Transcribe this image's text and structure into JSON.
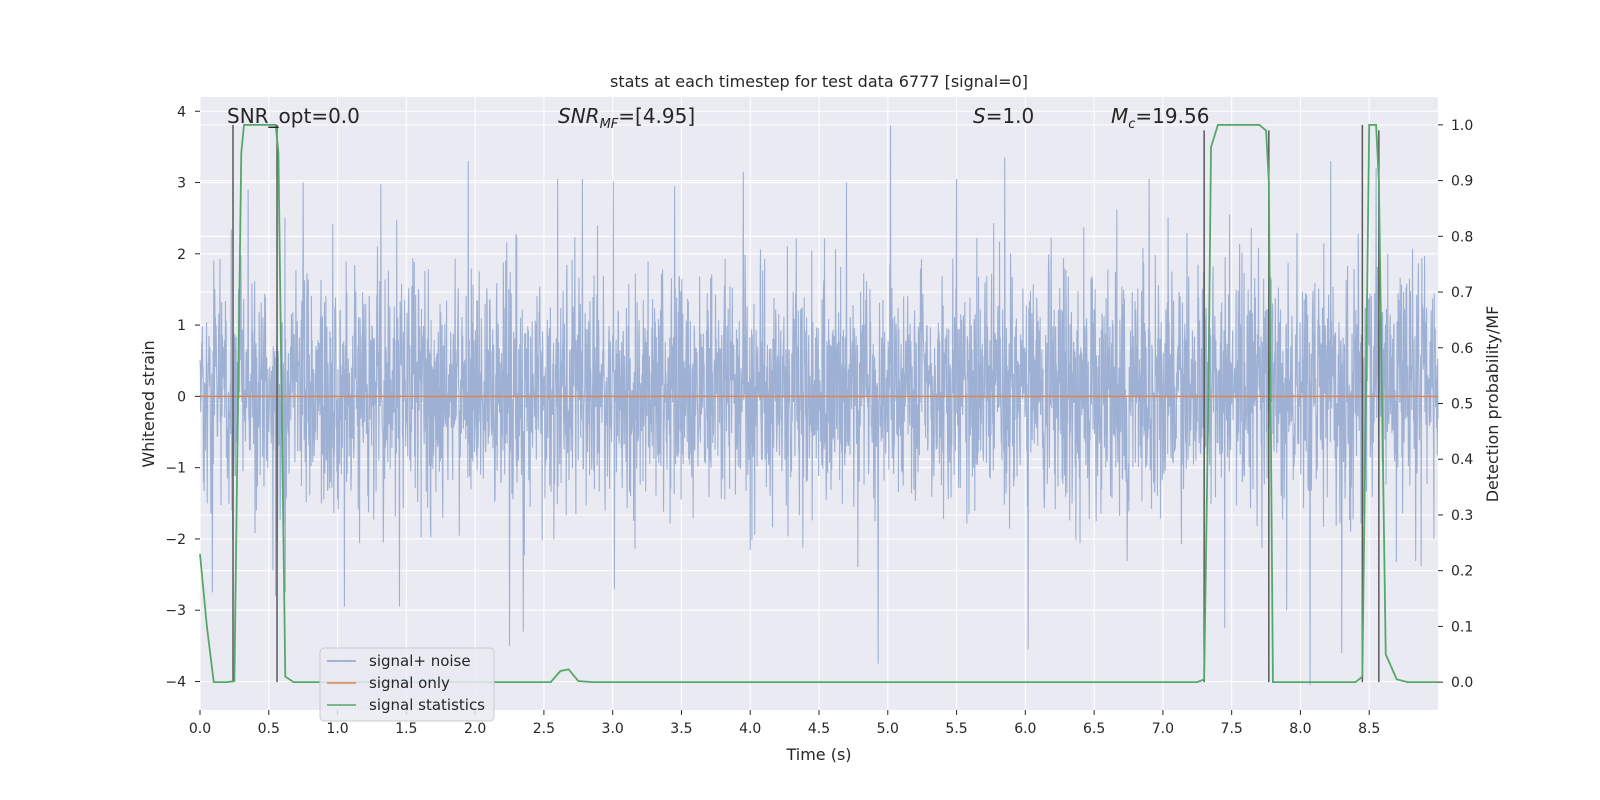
{
  "chart_data": {
    "type": "line",
    "title": "stats at each timestep for test data 6777 [signal=0]",
    "xlabel": "Time (s)",
    "ylabel_left": "Whitened strain",
    "ylabel_right": "Detection probability/MF",
    "xlim": [
      0.0,
      9.0
    ],
    "ylim_left": [
      -4.4,
      4.2
    ],
    "ylim_right": [
      -0.05,
      1.05
    ],
    "x_ticks": [
      0.0,
      0.5,
      1.0,
      1.5,
      2.0,
      2.5,
      3.0,
      3.5,
      4.0,
      4.5,
      5.0,
      5.5,
      6.0,
      6.5,
      7.0,
      7.5,
      8.0,
      8.5
    ],
    "x_tick_labels": [
      "0.0",
      "0.5",
      "1.0",
      "1.5",
      "2.0",
      "2.5",
      "3.0",
      "3.5",
      "4.0",
      "4.5",
      "5.0",
      "5.5",
      "6.0",
      "6.5",
      "7.0",
      "7.5",
      "8.0",
      "8.5"
    ],
    "y_ticks_left": [
      -4,
      -3,
      -2,
      -1,
      0,
      1,
      2,
      3,
      4
    ],
    "y_tick_labels_left": [
      "−4",
      "−3",
      "−2",
      "−1",
      "0",
      "1",
      "2",
      "3",
      "4"
    ],
    "y_ticks_right": [
      0.0,
      0.1,
      0.2,
      0.3,
      0.4,
      0.5,
      0.6,
      0.7,
      0.8,
      0.9,
      1.0
    ],
    "y_tick_labels_right": [
      "0.0",
      "0.1",
      "0.2",
      "0.3",
      "0.4",
      "0.5",
      "0.6",
      "0.7",
      "0.8",
      "0.9",
      "1.0"
    ],
    "annotations": {
      "snr_opt": "SNR_opt=0.0",
      "snr_mf_main": "SNR",
      "snr_mf_sub": "MF",
      "snr_mf_rest": "=[4.95]",
      "s_main": "S",
      "s_rest": "=1.0",
      "mc_main": "M",
      "mc_sub": "c",
      "mc_rest": "=19.56"
    },
    "legend": {
      "position": "lower-left",
      "entries": [
        {
          "label": "signal+ noise",
          "color": "#8da0cb"
        },
        {
          "label": "signal only",
          "color": "#dd8452"
        },
        {
          "label": "signal statistics",
          "color": "#55a868"
        }
      ]
    },
    "series": [
      {
        "name": "signal+ noise",
        "axis": "left",
        "color": "#9aaed2",
        "style": "dense-noise",
        "sample_rate_hz": 400,
        "typical_range": [
          -1.8,
          2.0
        ],
        "spikes": [
          {
            "x": 0.09,
            "y": -2.75
          },
          {
            "x": 0.35,
            "y": 2.9
          },
          {
            "x": 0.55,
            "y": -2.8
          },
          {
            "x": 0.62,
            "y": -2.75
          },
          {
            "x": 0.75,
            "y": 3.0
          },
          {
            "x": 1.05,
            "y": -2.95
          },
          {
            "x": 1.45,
            "y": -2.95
          },
          {
            "x": 1.95,
            "y": 3.3
          },
          {
            "x": 2.25,
            "y": -3.5
          },
          {
            "x": 2.35,
            "y": -3.3
          },
          {
            "x": 2.6,
            "y": 3.05
          },
          {
            "x": 2.78,
            "y": 3.05
          },
          {
            "x": 3.45,
            "y": 2.95
          },
          {
            "x": 3.95,
            "y": 3.15
          },
          {
            "x": 4.7,
            "y": 3.0
          },
          {
            "x": 4.93,
            "y": -3.75
          },
          {
            "x": 5.02,
            "y": 3.8
          },
          {
            "x": 5.5,
            "y": 3.05
          },
          {
            "x": 5.85,
            "y": 3.35
          },
          {
            "x": 6.02,
            "y": -3.55
          },
          {
            "x": 6.9,
            "y": 3.05
          },
          {
            "x": 7.45,
            "y": -3.25
          },
          {
            "x": 7.9,
            "y": -3.0
          },
          {
            "x": 8.07,
            "y": -4.05
          },
          {
            "x": 8.22,
            "y": 3.3
          },
          {
            "x": 8.3,
            "y": -3.6
          },
          {
            "x": 8.55,
            "y": 3.2
          }
        ]
      },
      {
        "name": "signal only",
        "axis": "left",
        "color": "#dd8452",
        "x": [
          0.0,
          9.0
        ],
        "y": [
          0.0,
          0.0
        ]
      },
      {
        "name": "signal statistics",
        "axis": "right",
        "color": "#55a868",
        "x": [
          0.0,
          0.05,
          0.1,
          0.2,
          0.25,
          0.3,
          0.32,
          0.55,
          0.57,
          0.62,
          0.68,
          0.75,
          2.45,
          2.55,
          2.62,
          2.68,
          2.75,
          2.85,
          7.25,
          7.3,
          7.33,
          7.35,
          7.4,
          7.7,
          7.75,
          7.77,
          7.8,
          8.4,
          8.45,
          8.48,
          8.5,
          8.55,
          8.57,
          8.62,
          8.7,
          8.78,
          9.0
        ],
        "y": [
          0.23,
          0.1,
          0.0,
          0.0,
          0.002,
          0.95,
          1.0,
          1.0,
          0.95,
          0.01,
          0.0,
          0.0,
          0.0,
          0.0,
          0.02,
          0.023,
          0.002,
          0.0,
          0.0,
          0.005,
          0.5,
          0.96,
          1.0,
          1.0,
          0.99,
          0.9,
          0.0,
          0.0,
          0.01,
          0.6,
          1.0,
          1.0,
          0.9,
          0.05,
          0.005,
          0.0,
          0.0
        ]
      },
      {
        "name": "detection markers",
        "axis": "right",
        "color": "#5a5a5a",
        "style": "vertical-lines",
        "x": [
          0.24,
          0.56,
          7.3,
          7.77,
          8.45,
          8.57
        ],
        "y_top": [
          1.0,
          1.0,
          0.99,
          0.99,
          1.0,
          0.99
        ]
      }
    ],
    "extra_horizontal_lines_right": [
      0.2,
      0.3,
      0.4,
      0.5,
      0.6,
      0.7,
      0.8,
      0.9,
      1.0
    ],
    "grid": true
  }
}
